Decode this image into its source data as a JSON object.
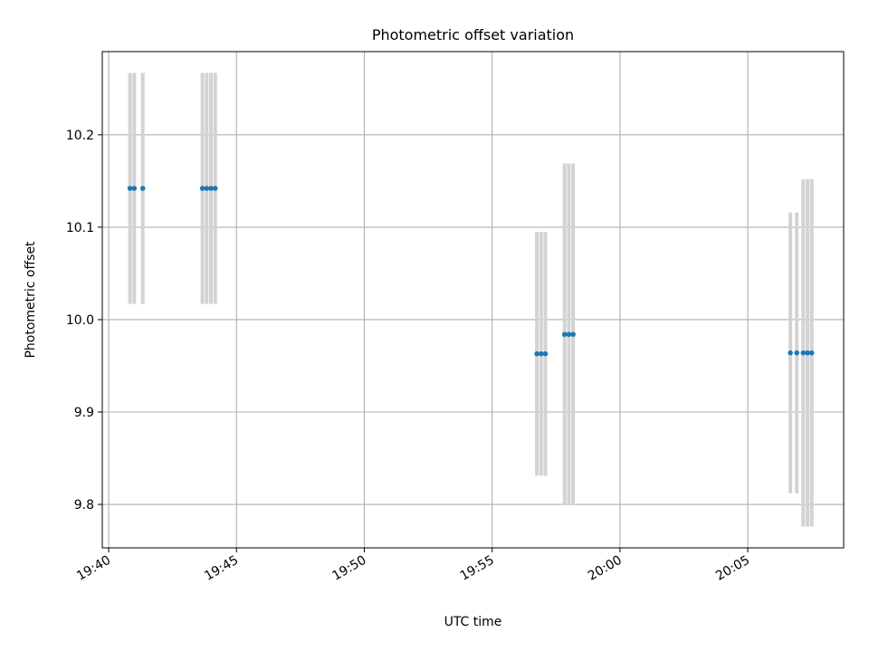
{
  "chart_data": {
    "type": "scatter",
    "title": "Photometric offset variation",
    "xlabel": "UTC time",
    "ylabel": "Photometric offset",
    "xlim": [
      "19:39:45",
      "20:08:45"
    ],
    "ylim": [
      9.753,
      10.29
    ],
    "grid": true,
    "x_ticks": [
      "19:40",
      "19:45",
      "19:50",
      "19:55",
      "20:00",
      "20:05"
    ],
    "y_ticks": [
      9.8,
      9.9,
      10.0,
      10.1,
      10.2
    ],
    "y_tick_labels": [
      "9.8",
      "9.9",
      "10.0",
      "10.1",
      "10.2"
    ],
    "series": [
      {
        "marker_color": "#1f77b4",
        "errorbar_color": "#d3d3d3",
        "points": [
          {
            "x": "19:40:50",
            "y": 10.142,
            "err": 0.125
          },
          {
            "x": "19:41:00",
            "y": 10.142,
            "err": 0.125
          },
          {
            "x": "19:41:20",
            "y": 10.142,
            "err": 0.125
          },
          {
            "x": "19:43:40",
            "y": 10.142,
            "err": 0.125
          },
          {
            "x": "19:43:50",
            "y": 10.142,
            "err": 0.125
          },
          {
            "x": "19:44:00",
            "y": 10.142,
            "err": 0.125
          },
          {
            "x": "19:44:10",
            "y": 10.142,
            "err": 0.125
          },
          {
            "x": "19:56:45",
            "y": 9.963,
            "err": 0.132
          },
          {
            "x": "19:56:55",
            "y": 9.963,
            "err": 0.132
          },
          {
            "x": "19:57:05",
            "y": 9.963,
            "err": 0.132
          },
          {
            "x": "19:57:50",
            "y": 9.984,
            "err": 0.185
          },
          {
            "x": "19:58:00",
            "y": 9.984,
            "err": 0.185
          },
          {
            "x": "19:58:10",
            "y": 9.984,
            "err": 0.185
          },
          {
            "x": "20:06:40",
            "y": 9.964,
            "err": 0.152
          },
          {
            "x": "20:06:55",
            "y": 9.964,
            "err": 0.152
          },
          {
            "x": "20:07:10",
            "y": 9.964,
            "err": 0.188
          },
          {
            "x": "20:07:20",
            "y": 9.964,
            "err": 0.188
          },
          {
            "x": "20:07:30",
            "y": 9.964,
            "err": 0.188
          }
        ]
      }
    ]
  }
}
